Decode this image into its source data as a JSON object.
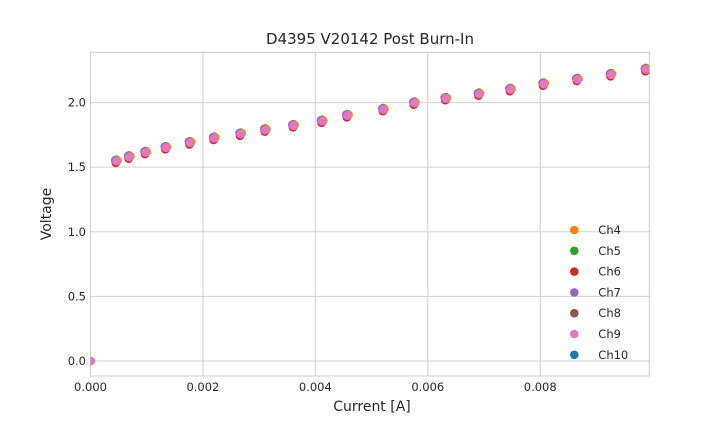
{
  "figure": {
    "background": "#ffffff",
    "text_color": "#262626",
    "grid_color": "#d0d0d0",
    "spine_color": "#cccccc"
  },
  "chart_data": {
    "type": "scatter",
    "title": "D4395 V20142 Post Burn-In",
    "xlabel": "Current [A]",
    "ylabel": "Voltage",
    "grid": true,
    "legend_position": "lower right",
    "xlim": [
      0.0,
      0.00994
    ],
    "ylim": [
      -0.116,
      2.389
    ],
    "x_ticks": {
      "values": [
        0.0,
        0.002,
        0.004,
        0.006,
        0.008
      ],
      "labels": [
        "0.000",
        "0.002",
        "0.004",
        "0.006",
        "0.008"
      ]
    },
    "y_ticks": {
      "values": [
        0.0,
        0.5,
        1.0,
        1.5,
        2.0
      ],
      "labels": [
        "0.0",
        "0.5",
        "1.0",
        "1.5",
        "2.0"
      ]
    },
    "x": [
      0.0,
      0.00046,
      0.00069,
      0.00098,
      0.00134,
      0.00177,
      0.0022,
      0.00267,
      0.00311,
      0.00361,
      0.00412,
      0.00457,
      0.00521,
      0.00576,
      0.00632,
      0.00691,
      0.00747,
      0.00806,
      0.00866,
      0.00926,
      0.00988
    ],
    "base_voltage": [
      0.0,
      1.545,
      1.578,
      1.613,
      1.65,
      1.688,
      1.723,
      1.755,
      1.787,
      1.82,
      1.855,
      1.898,
      1.945,
      1.995,
      2.03,
      2.065,
      2.1,
      2.142,
      2.178,
      2.215,
      2.255
    ],
    "series": [
      {
        "name": "Ch4",
        "color": "#ff7f0e",
        "dv": 0.006,
        "dx": 2e-05
      },
      {
        "name": "Ch5",
        "color": "#2ca02c",
        "dv": 0.013,
        "dx": 0.0
      },
      {
        "name": "Ch6",
        "color": "#d62728",
        "dv": -0.012,
        "dx": -1e-05
      },
      {
        "name": "Ch7",
        "color": "#9467bd",
        "dv": 0.009,
        "dx": -2e-05
      },
      {
        "name": "Ch8",
        "color": "#8c564b",
        "dv": -0.006,
        "dx": 0.0
      },
      {
        "name": "Ch9",
        "color": "#e377c2",
        "dv": 0.0,
        "dx": 0.0
      },
      {
        "name": "Ch10",
        "color": "#1f77b4",
        "dv": -0.002,
        "dx": 0.0
      }
    ],
    "draw_order": [
      "Ch10",
      "Ch8",
      "Ch6",
      "Ch5",
      "Ch7",
      "Ch4",
      "Ch9"
    ],
    "marker_radius": 4.3
  }
}
